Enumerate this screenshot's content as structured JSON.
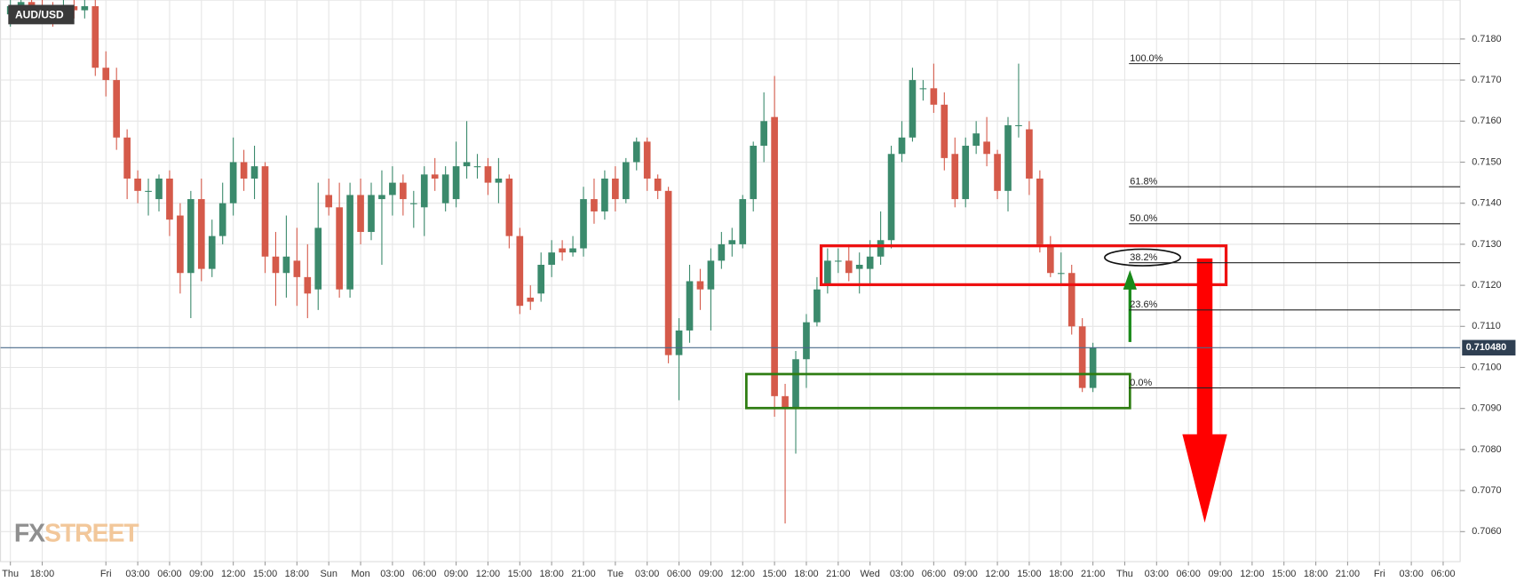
{
  "chart_data": {
    "type": "candlestick",
    "title": "AUD/USD",
    "logo": [
      "FX",
      "STREET"
    ],
    "up_color": "#3b8a6c",
    "down_color": "#d55a4a",
    "grid": true,
    "xlim": [
      -3.93,
      133.6
    ],
    "ylim": [
      0.70527,
      0.71895
    ],
    "yticks": [
      {
        "value": 0.706,
        "label": "0.7060"
      },
      {
        "value": 0.707,
        "label": "0.7070"
      },
      {
        "value": 0.708,
        "label": "0.7080"
      },
      {
        "value": 0.709,
        "label": "0.7090"
      },
      {
        "value": 0.71,
        "label": "0.7100"
      },
      {
        "value": 0.711,
        "label": "0.7110"
      },
      {
        "value": 0.712,
        "label": "0.7120"
      },
      {
        "value": 0.713,
        "label": "0.7130"
      },
      {
        "value": 0.714,
        "label": "0.7140"
      },
      {
        "value": 0.715,
        "label": "0.7150"
      },
      {
        "value": 0.716,
        "label": "0.7160"
      },
      {
        "value": 0.717,
        "label": "0.7170"
      },
      {
        "value": 0.718,
        "label": "0.7180"
      }
    ],
    "xticks": [
      {
        "value": -3,
        "label": "Thu"
      },
      {
        "value": 0,
        "label": "18:00"
      },
      {
        "value": 6,
        "label": "Fri"
      },
      {
        "value": 9,
        "label": "03:00"
      },
      {
        "value": 12,
        "label": "06:00"
      },
      {
        "value": 15,
        "label": "09:00"
      },
      {
        "value": 18,
        "label": "12:00"
      },
      {
        "value": 21,
        "label": "15:00"
      },
      {
        "value": 24,
        "label": "18:00"
      },
      {
        "value": 27,
        "label": "Sun"
      },
      {
        "value": 30,
        "label": "Mon"
      },
      {
        "value": 33,
        "label": "03:00"
      },
      {
        "value": 36,
        "label": "06:00"
      },
      {
        "value": 39,
        "label": "09:00"
      },
      {
        "value": 42,
        "label": "12:00"
      },
      {
        "value": 45,
        "label": "15:00"
      },
      {
        "value": 48,
        "label": "18:00"
      },
      {
        "value": 51,
        "label": "21:00"
      },
      {
        "value": 54,
        "label": "Tue"
      },
      {
        "value": 57,
        "label": "03:00"
      },
      {
        "value": 60,
        "label": "06:00"
      },
      {
        "value": 63,
        "label": "09:00"
      },
      {
        "value": 66,
        "label": "12:00"
      },
      {
        "value": 69,
        "label": "15:00"
      },
      {
        "value": 72,
        "label": "18:00"
      },
      {
        "value": 75,
        "label": "21:00"
      },
      {
        "value": 78,
        "label": "Wed"
      },
      {
        "value": 81,
        "label": "03:00"
      },
      {
        "value": 84,
        "label": "06:00"
      },
      {
        "value": 87,
        "label": "09:00"
      },
      {
        "value": 90,
        "label": "12:00"
      },
      {
        "value": 93,
        "label": "15:00"
      },
      {
        "value": 96,
        "label": "18:00"
      },
      {
        "value": 99,
        "label": "21:00"
      },
      {
        "value": 102,
        "label": "Thu"
      },
      {
        "value": 105,
        "label": "03:00"
      },
      {
        "value": 108,
        "label": "06:00"
      },
      {
        "value": 111,
        "label": "09:00"
      },
      {
        "value": 114,
        "label": "12:00"
      },
      {
        "value": 117,
        "label": "15:00"
      },
      {
        "value": 120,
        "label": "18:00"
      },
      {
        "value": 123,
        "label": "21:00"
      },
      {
        "value": 126,
        "label": "Fri"
      },
      {
        "value": 129,
        "label": "03:00"
      },
      {
        "value": 132,
        "label": "06:00"
      }
    ],
    "x": [
      -3,
      -2,
      -1,
      0,
      1,
      2,
      3,
      4,
      5,
      6,
      7,
      8,
      9,
      10,
      11,
      12,
      13,
      14,
      15,
      16,
      17,
      18,
      19,
      20,
      21,
      22,
      23,
      24,
      25,
      26,
      27,
      28,
      29,
      30,
      31,
      32,
      33,
      34,
      35,
      36,
      37,
      38,
      39,
      40,
      41,
      42,
      43,
      44,
      45,
      46,
      47,
      48,
      49,
      50,
      51,
      52,
      53,
      54,
      55,
      56,
      57,
      58,
      59,
      60,
      61,
      62,
      63,
      64,
      65,
      66,
      67,
      68,
      69,
      70,
      71,
      72,
      73,
      74,
      75,
      76,
      77,
      78,
      79,
      80,
      81,
      82,
      83,
      84,
      85,
      86,
      87,
      88,
      89,
      90,
      91,
      92,
      93,
      94,
      95,
      96,
      97,
      98,
      99
    ],
    "open": [
      0.7186,
      0.7187,
      0.7189,
      0.7188,
      0.7187,
      0.7186,
      0.7188,
      0.7187,
      0.7188,
      0.7173,
      0.717,
      0.7156,
      0.7146,
      0.7143,
      0.7141,
      0.7146,
      0.7137,
      0.7123,
      0.7141,
      0.7124,
      0.7132,
      0.714,
      0.715,
      0.7146,
      0.7149,
      0.7127,
      0.7123,
      0.7126,
      0.7122,
      0.7119,
      0.7142,
      0.7139,
      0.7119,
      0.7142,
      0.7133,
      0.7141,
      0.7142,
      0.7145,
      0.714,
      0.7139,
      0.7147,
      0.714,
      0.7141,
      0.7149,
      0.7149,
      0.7149,
      0.7145,
      0.7146,
      0.7132,
      0.7117,
      0.7118,
      0.7125,
      0.7129,
      0.7128,
      0.7129,
      0.7141,
      0.7138,
      0.7146,
      0.7141,
      0.715,
      0.7155,
      0.7146,
      0.7143,
      0.7103,
      0.7109,
      0.7121,
      0.7119,
      0.7126,
      0.713,
      0.713,
      0.7141,
      0.7154,
      0.7161,
      0.7093,
      0.709,
      0.7102,
      0.7111,
      0.712,
      0.7126,
      0.7126,
      0.7124,
      0.7124,
      0.7127,
      0.7131,
      0.7152,
      0.7156,
      0.7168,
      0.7168,
      0.7164,
      0.7152,
      0.7141,
      0.7154,
      0.7155,
      0.7152,
      0.7143,
      0.7159,
      0.7158,
      0.7146,
      0.713,
      0.7123,
      0.7123,
      0.711,
      0.7095
    ],
    "high": [
      0.7191,
      0.7192,
      0.7192,
      0.719,
      0.7189,
      0.719,
      0.7191,
      0.7191,
      0.719,
      0.7177,
      0.7173,
      0.7158,
      0.7148,
      0.7146,
      0.7147,
      0.7148,
      0.714,
      0.7143,
      0.7146,
      0.7136,
      0.7145,
      0.7156,
      0.7153,
      0.7154,
      0.715,
      0.7133,
      0.7137,
      0.7134,
      0.713,
      0.7145,
      0.7146,
      0.7145,
      0.7145,
      0.7146,
      0.7145,
      0.7148,
      0.7149,
      0.7147,
      0.7143,
      0.7149,
      0.7151,
      0.7149,
      0.7155,
      0.716,
      0.7152,
      0.7151,
      0.7151,
      0.7147,
      0.7134,
      0.712,
      0.7128,
      0.7131,
      0.7131,
      0.7132,
      0.7144,
      0.7146,
      0.7148,
      0.7149,
      0.7151,
      0.7156,
      0.7156,
      0.7147,
      0.7144,
      0.7112,
      0.7125,
      0.7124,
      0.7129,
      0.7133,
      0.7134,
      0.7142,
      0.7155,
      0.7167,
      0.7171,
      0.7096,
      0.7104,
      0.7113,
      0.7122,
      0.7129,
      0.7129,
      0.713,
      0.7128,
      0.7131,
      0.7138,
      0.7154,
      0.716,
      0.7173,
      0.717,
      0.7174,
      0.7167,
      0.7156,
      0.7156,
      0.716,
      0.7161,
      0.7153,
      0.7161,
      0.7174,
      0.716,
      0.7148,
      0.7132,
      0.7128,
      0.7125,
      0.7112,
      0.7106
    ],
    "low": [
      0.7183,
      0.7184,
      0.7185,
      0.7184,
      0.7183,
      0.7184,
      0.7185,
      0.7185,
      0.7171,
      0.7166,
      0.7153,
      0.7141,
      0.714,
      0.7137,
      0.7138,
      0.7132,
      0.7118,
      0.7112,
      0.7121,
      0.7122,
      0.713,
      0.7137,
      0.7143,
      0.7141,
      0.7123,
      0.7115,
      0.7117,
      0.7115,
      0.7112,
      0.7114,
      0.7137,
      0.7117,
      0.7117,
      0.713,
      0.7131,
      0.7125,
      0.7137,
      0.7137,
      0.7134,
      0.7132,
      0.7143,
      0.7138,
      0.7139,
      0.7146,
      0.7146,
      0.7142,
      0.714,
      0.7129,
      0.7113,
      0.7114,
      0.7116,
      0.7122,
      0.7126,
      0.7127,
      0.7127,
      0.7135,
      0.7136,
      0.7138,
      0.714,
      0.7148,
      0.7143,
      0.7141,
      0.7101,
      0.7092,
      0.7106,
      0.7114,
      0.7109,
      0.7124,
      0.7127,
      0.7129,
      0.7138,
      0.715,
      0.7088,
      0.7062,
      0.7079,
      0.7095,
      0.711,
      0.7118,
      0.7123,
      0.7121,
      0.7118,
      0.712,
      0.7125,
      0.7129,
      0.715,
      0.7155,
      0.7165,
      0.7162,
      0.7148,
      0.7139,
      0.7139,
      0.7152,
      0.7149,
      0.7141,
      0.7138,
      0.7156,
      0.7142,
      0.7128,
      0.7122,
      0.712,
      0.7108,
      0.7094,
      0.7094
    ],
    "close": [
      0.7188,
      0.7189,
      0.7188,
      0.7187,
      0.7186,
      0.7188,
      0.7187,
      0.7188,
      0.7173,
      0.717,
      0.7156,
      0.7146,
      0.7143,
      0.7143,
      0.7146,
      0.7136,
      0.7123,
      0.7141,
      0.7124,
      0.7132,
      0.714,
      0.715,
      0.7146,
      0.7149,
      0.7127,
      0.7123,
      0.7127,
      0.7122,
      0.7118,
      0.7134,
      0.7139,
      0.7119,
      0.7142,
      0.7133,
      0.7142,
      0.7142,
      0.7145,
      0.7141,
      0.714,
      0.7147,
      0.7146,
      0.7147,
      0.7149,
      0.715,
      0.7149,
      0.7145,
      0.7146,
      0.7132,
      0.7115,
      0.7116,
      0.7125,
      0.7128,
      0.7128,
      0.7129,
      0.7141,
      0.7138,
      0.7146,
      0.7141,
      0.715,
      0.7155,
      0.7146,
      0.7143,
      0.7103,
      0.7109,
      0.7121,
      0.7119,
      0.7126,
      0.713,
      0.7131,
      0.7141,
      0.7154,
      0.716,
      0.7093,
      0.709,
      0.7102,
      0.7111,
      0.7119,
      0.7126,
      0.7126,
      0.7123,
      0.7125,
      0.7127,
      0.7131,
      0.7152,
      0.7156,
      0.717,
      0.7168,
      0.7164,
      0.7151,
      0.7141,
      0.7154,
      0.7157,
      0.7152,
      0.7143,
      0.7159,
      0.7159,
      0.7146,
      0.713,
      0.7123,
      0.7123,
      0.711,
      0.7095,
      0.71048
    ],
    "fib_levels": [
      {
        "label": "100.0%",
        "value": 0.7174
      },
      {
        "label": "61.8%",
        "value": 0.7144
      },
      {
        "label": "50.0%",
        "value": 0.7135
      },
      {
        "label": "38.2%",
        "value": 0.71255
      },
      {
        "label": "23.6%",
        "value": 0.7114
      },
      {
        "label": "0.0%",
        "value": 0.7095
      }
    ],
    "price_line": {
      "value": 0.71048,
      "label": "0.710480"
    }
  }
}
